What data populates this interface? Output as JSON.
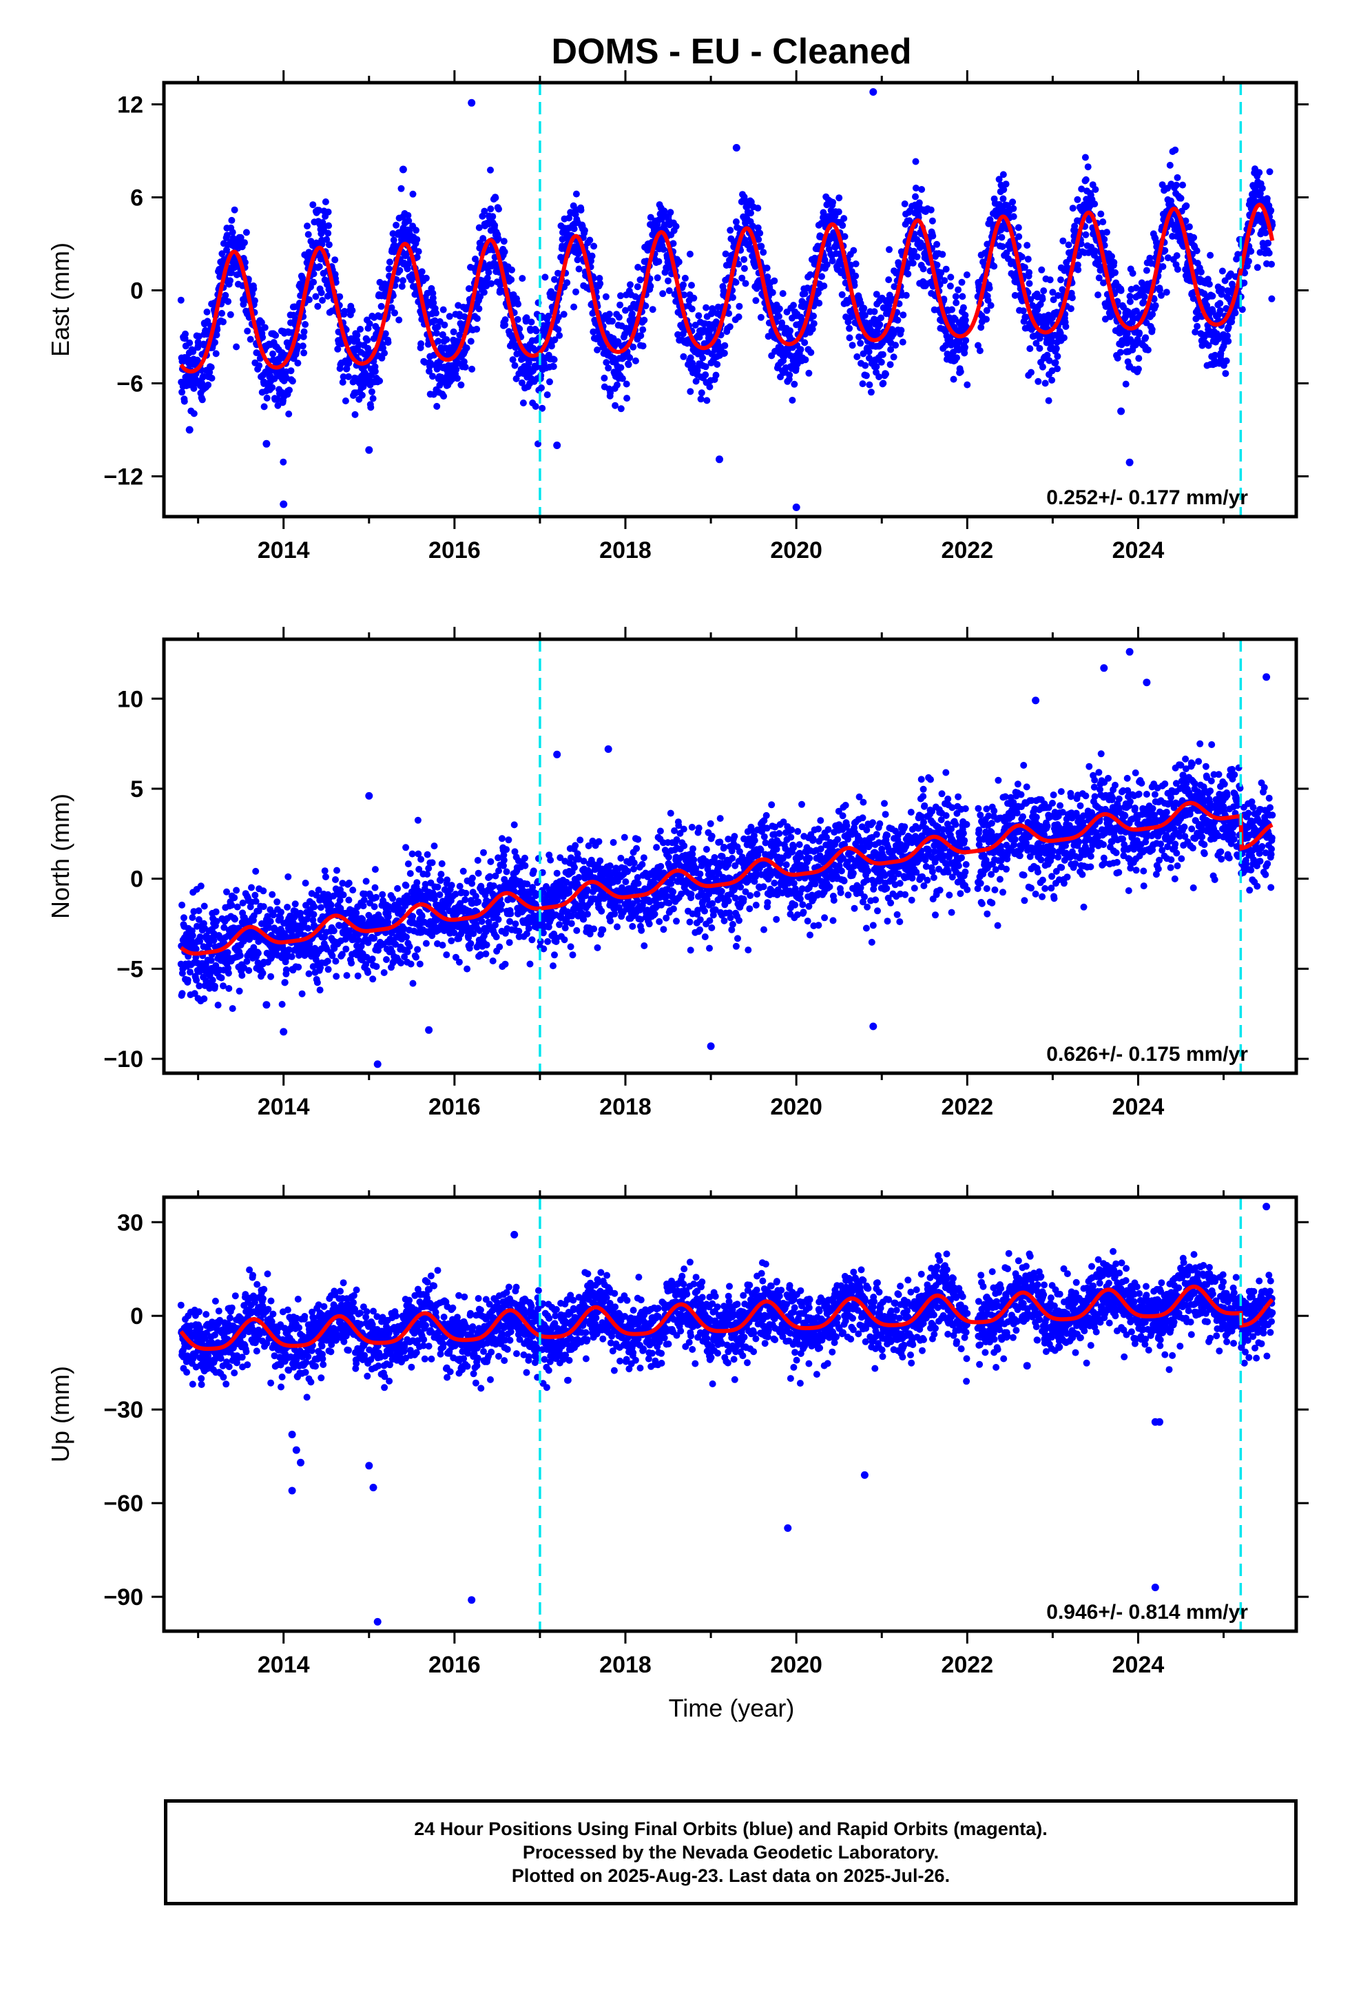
{
  "title": "DOMS  - EU - Cleaned",
  "xlabel": "Time (year)",
  "colors": {
    "data": "#0000ff",
    "model": "#ff0000",
    "break": "#00e5ee",
    "frame": "#000000"
  },
  "caption": [
    "24 Hour Positions Using Final Orbits (blue) and Rapid Orbits (magenta).",
    "Processed by the Nevada Geodetic Laboratory.",
    "Plotted on 2025-Aug-23. Last data on 2025-Jul-26."
  ],
  "chart_data": [
    {
      "type": "scatter",
      "component": "east",
      "ylabel": "East (mm)",
      "velocity_text": "0.252+/- 0.177 mm/yr",
      "xlim": [
        2012.6,
        2025.85
      ],
      "ylim": [
        -14.6,
        13.4
      ],
      "xticks": [
        2014,
        2016,
        2018,
        2020,
        2022,
        2024
      ],
      "yticks": [
        -12,
        -6,
        0,
        6,
        12
      ],
      "breaks": [
        2017.0,
        2025.2
      ],
      "model": {
        "t0": 2019.0,
        "offset": -0.5,
        "rate": 0.252,
        "annual_amp": 3.8,
        "annual_peak": 0.42,
        "semi_amp": 0.6,
        "step_2025": 0.0
      },
      "series": [
        {
          "name": "Final Orbits (blue)",
          "color": "#0000ff",
          "x_range": [
            2012.8,
            2025.57
          ],
          "scatter_sd": 1.5
        },
        {
          "name": "model",
          "color": "#ff0000"
        }
      ],
      "outliers": [
        [
          2016.2,
          12.1
        ],
        [
          2020.9,
          12.8
        ],
        [
          2019.3,
          9.2
        ],
        [
          2015.4,
          7.8
        ],
        [
          2013.8,
          -9.9
        ],
        [
          2014.0,
          -13.8
        ],
        [
          2015.0,
          -10.3
        ],
        [
          2017.2,
          -10.0
        ],
        [
          2019.1,
          -10.9
        ],
        [
          2020.0,
          -14.0
        ],
        [
          2023.9,
          -11.1
        ],
        [
          2023.8,
          -7.8
        ],
        [
          2012.9,
          -9.0
        ]
      ]
    },
    {
      "type": "scatter",
      "component": "north",
      "ylabel": "North (mm)",
      "velocity_text": "0.626+/- 0.175 mm/yr",
      "xlim": [
        2012.6,
        2025.85
      ],
      "ylim": [
        -10.8,
        13.3
      ],
      "xticks": [
        2014,
        2016,
        2018,
        2020,
        2022,
        2024
      ],
      "yticks": [
        -10,
        -5,
        0,
        5,
        10
      ],
      "breaks": [
        2017.0,
        2025.2
      ],
      "model": {
        "t0": 2019.0,
        "offset": 0.0,
        "rate": 0.626,
        "annual_amp": 0.55,
        "annual_peak": 0.6,
        "semi_amp": 0.15,
        "step_2025": -1.8
      },
      "series": [
        {
          "name": "Final Orbits (blue)",
          "color": "#0000ff",
          "x_range": [
            2012.8,
            2025.57
          ],
          "scatter_sd": 1.3
        },
        {
          "name": "model",
          "color": "#ff0000"
        }
      ],
      "outliers": [
        [
          2023.9,
          12.6
        ],
        [
          2023.6,
          11.7
        ],
        [
          2024.1,
          10.9
        ],
        [
          2025.5,
          11.2
        ],
        [
          2022.8,
          9.9
        ],
        [
          2015.0,
          4.6
        ],
        [
          2017.2,
          6.9
        ],
        [
          2017.8,
          7.2
        ],
        [
          2014.0,
          -8.5
        ],
        [
          2015.1,
          -10.3
        ],
        [
          2015.7,
          -8.4
        ],
        [
          2019.0,
          -9.3
        ],
        [
          2020.9,
          -8.2
        ],
        [
          2013.8,
          -7.0
        ]
      ]
    },
    {
      "type": "scatter",
      "component": "up",
      "ylabel": "Up (mm)",
      "velocity_text": "0.946+/- 0.814 mm/yr",
      "xlim": [
        2012.6,
        2025.85
      ],
      "ylim": [
        -101,
        38
      ],
      "xticks": [
        2014,
        2016,
        2018,
        2020,
        2022,
        2024
      ],
      "yticks": [
        -90,
        -60,
        -30,
        0,
        30
      ],
      "breaks": [
        2017.0,
        2025.2
      ],
      "model": {
        "t0": 2019.0,
        "offset": -1.5,
        "rate": 0.946,
        "annual_amp": 4.5,
        "annual_peak": 0.65,
        "semi_amp": 1.0,
        "step_2025": -4.0
      },
      "series": [
        {
          "name": "Final Orbits (blue)",
          "color": "#0000ff",
          "x_range": [
            2012.8,
            2025.57
          ],
          "scatter_sd": 5.5
        },
        {
          "name": "model",
          "color": "#ff0000"
        }
      ],
      "outliers": [
        [
          2014.1,
          -38
        ],
        [
          2014.15,
          -43
        ],
        [
          2014.2,
          -47
        ],
        [
          2014.1,
          -56
        ],
        [
          2015.0,
          -48
        ],
        [
          2015.05,
          -55
        ],
        [
          2015.1,
          -98
        ],
        [
          2016.2,
          -91
        ],
        [
          2016.7,
          26
        ],
        [
          2019.9,
          -68
        ],
        [
          2020.8,
          -51
        ],
        [
          2024.2,
          -34
        ],
        [
          2024.25,
          -34
        ],
        [
          2024.2,
          -87
        ],
        [
          2025.5,
          35
        ],
        [
          2022.7,
          -16
        ]
      ]
    }
  ]
}
